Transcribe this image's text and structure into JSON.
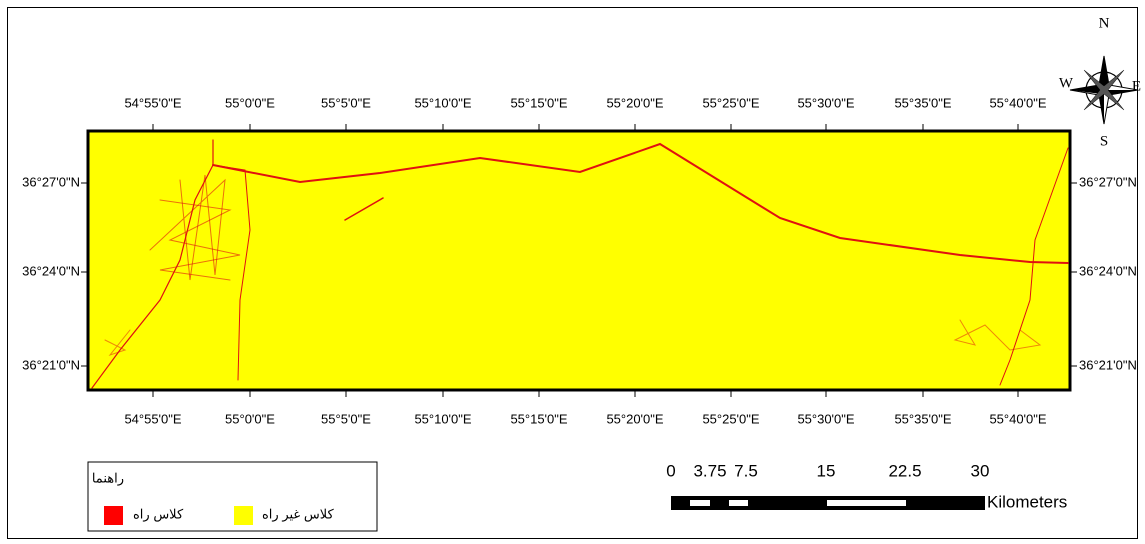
{
  "map": {
    "longitude_labels": [
      "54°55'0\"E",
      "55°0'0\"E",
      "55°5'0\"E",
      "55°10'0\"E",
      "55°15'0\"E",
      "55°20'0\"E",
      "55°25'0\"E",
      "55°30'0\"E",
      "55°35'0\"E",
      "55°40'0\"E"
    ],
    "latitude_labels": [
      "36°27'0\"N",
      "36°24'0\"N",
      "36°21'0\"N"
    ],
    "north_arrow": {
      "n": "N",
      "e": "E",
      "s": "S",
      "w": "W"
    },
    "legend": {
      "title": "راهنما",
      "items": [
        {
          "label": "کلاس راه",
          "color": "#ff0000"
        },
        {
          "label": "کلاس غیر راه",
          "color": "#ffff00"
        }
      ]
    },
    "scale_bar": {
      "labels": [
        "0",
        "3.75",
        "7.5",
        "15",
        "22.5",
        "30"
      ],
      "unit": "Kilometers"
    }
  }
}
